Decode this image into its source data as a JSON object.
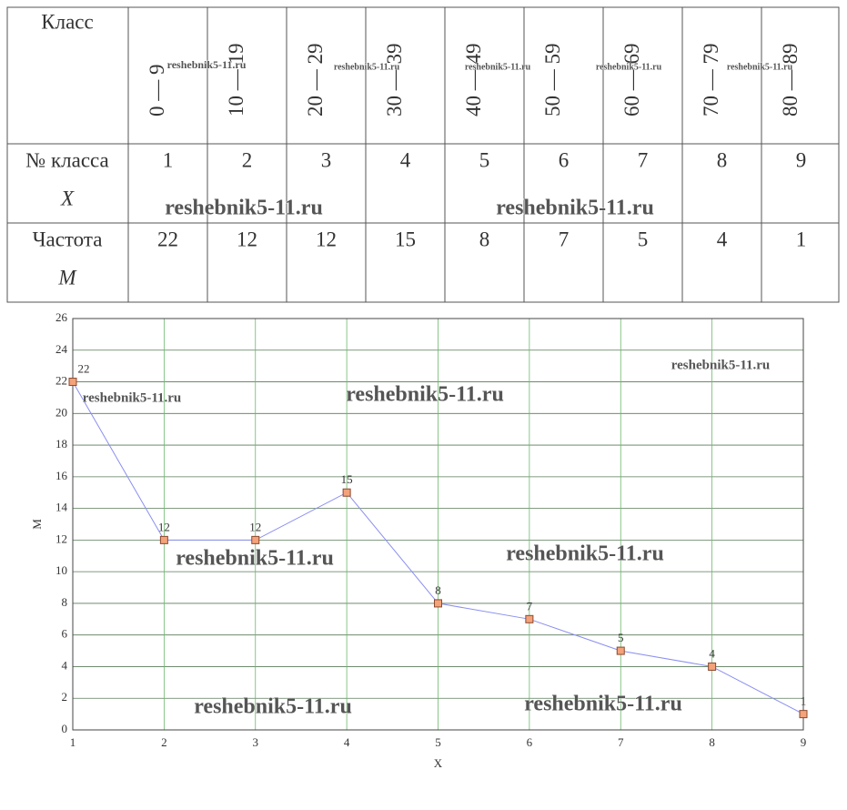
{
  "table": {
    "header": [
      "Класс",
      "0 — 9",
      "10 — 19",
      "20 — 29",
      "30 — 39",
      "40 — 49",
      "50 — 59",
      "60 — 69",
      "70 — 79",
      "80 — 89"
    ],
    "rows": [
      {
        "label": "№ класса",
        "symbol": "X",
        "cells": [
          1,
          2,
          3,
          4,
          5,
          6,
          7,
          8,
          9
        ]
      },
      {
        "label": "Частота",
        "symbol": "M",
        "cells": [
          22,
          12,
          12,
          15,
          8,
          7,
          5,
          4,
          1
        ]
      }
    ]
  },
  "chart_data": {
    "type": "line",
    "x_label": "X",
    "y_label": "M",
    "x": [
      1,
      2,
      3,
      4,
      5,
      6,
      7,
      8,
      9
    ],
    "series": [
      {
        "name": "M",
        "color": "#8a8ef0",
        "marker_color": "#f4a27a",
        "values": [
          22,
          12,
          12,
          15,
          8,
          7,
          5,
          4,
          1
        ]
      }
    ],
    "xlim": [
      1,
      9
    ],
    "xticks": [
      1,
      2,
      3,
      4,
      5,
      6,
      7,
      8,
      9
    ],
    "ylim": [
      0,
      26
    ],
    "yticks": [
      0,
      2,
      4,
      6,
      8,
      10,
      12,
      14,
      16,
      18,
      20,
      22,
      24,
      26
    ],
    "grid": true
  },
  "watermarks": [
    "reshebnik5-11.ru",
    "reshebnik5-11.ru",
    "reshebnik5-11.ru",
    "reshebnik5-11.ru",
    "reshebnik5-11.ru",
    "reshebnik5-11.ru",
    "reshebnik5-11.ru",
    "reshebnik5-11.ru",
    "reshebnik5-11.ru",
    "reshebnik5-11.ru",
    "reshebnik5-11.ru",
    "reshebnik5-11.ru",
    "reshebnik5-11.ru",
    "reshebnik5-11.ru"
  ]
}
